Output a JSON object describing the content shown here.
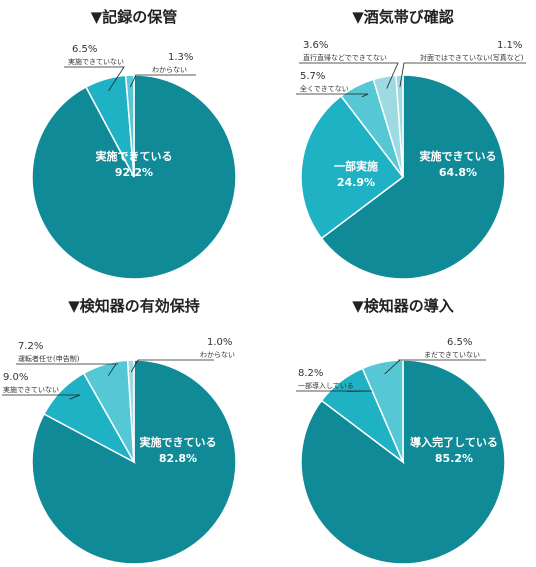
{
  "palette": {
    "main": "#108A96",
    "second": "#1FB1C4",
    "third": "#56C7D5",
    "fourth": "#9DDAE2",
    "leader": "#222222",
    "label_text": "#333333"
  },
  "chart_data": [
    {
      "type": "pie",
      "title": "▼記録の保管",
      "slices": [
        {
          "label": "実施できている",
          "value": 92.2,
          "value_text": "92.2%"
        },
        {
          "label": "実施できていない",
          "value": 6.5,
          "value_text": "6.5%"
        },
        {
          "label": "わからない",
          "value": 1.3,
          "value_text": "1.3%"
        }
      ]
    },
    {
      "type": "pie",
      "title": "▼酒気帯び確認",
      "slices": [
        {
          "label": "実施できている",
          "value": 64.8,
          "value_text": "64.8%"
        },
        {
          "label": "一部実施",
          "value": 24.9,
          "value_text": "24.9%"
        },
        {
          "label": "全くできてない",
          "value": 5.7,
          "value_text": "5.7%"
        },
        {
          "label": "直行直帰などでできてない",
          "value": 3.6,
          "value_text": "3.6%"
        },
        {
          "label": "対面ではできていない(写真など)",
          "value": 1.1,
          "value_text": "1.1%"
        }
      ]
    },
    {
      "type": "pie",
      "title": "▼検知器の有効保持",
      "slices": [
        {
          "label": "実施できている",
          "value": 82.8,
          "value_text": "82.8%"
        },
        {
          "label": "実施できていない",
          "value": 9.0,
          "value_text": "9.0%"
        },
        {
          "label": "運転者任せ(申告制)",
          "value": 7.2,
          "value_text": "7.2%"
        },
        {
          "label": "わからない",
          "value": 1.0,
          "value_text": "1.0%"
        }
      ]
    },
    {
      "type": "pie",
      "title": "▼検知器の導入",
      "slices": [
        {
          "label": "導入完了している",
          "value": 85.2,
          "value_text": "85.2%"
        },
        {
          "label": "一部導入している",
          "value": 8.2,
          "value_text": "8.2%"
        },
        {
          "label": "まだできていない",
          "value": 6.5,
          "value_text": "6.5%"
        }
      ]
    }
  ]
}
